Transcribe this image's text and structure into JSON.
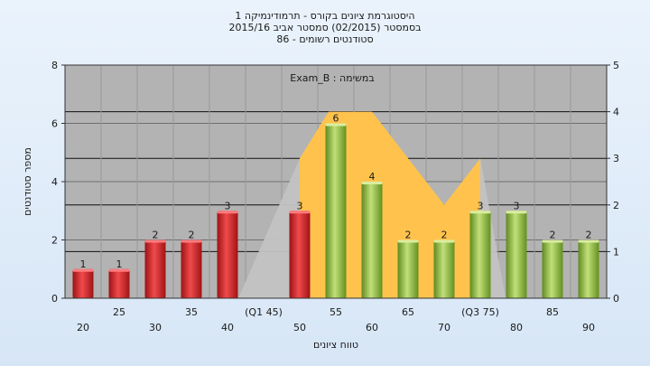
{
  "chart_data": {
    "type": "bar",
    "title_lines": [
      "היסטוגרמת ציונים בקורס - תרמודינמיקה 1",
      "בסמסטר  (02/2015)  סמסטר אביב 2015/16",
      "סטודנטים רשומים - 86"
    ],
    "annotation": "במשימה : Exam_B",
    "xlabel": "טווח ציונים",
    "ylabel": "מספר סטודנטים",
    "ylim": [
      0,
      8
    ],
    "y_ticks": [
      0,
      2,
      4,
      6,
      8
    ],
    "y2lim": [
      0,
      5
    ],
    "y2_ticks": [
      0,
      1,
      2,
      3,
      4,
      5
    ],
    "categories": [
      "20",
      "25",
      "30",
      "35",
      "40",
      "(Q1 45)",
      "50",
      "55",
      "60",
      "65",
      "70",
      "(Q3 75)",
      "80",
      "85",
      "90"
    ],
    "values": [
      1,
      1,
      2,
      2,
      3,
      0,
      3,
      6,
      4,
      2,
      2,
      3,
      3,
      2,
      2
    ],
    "bar_colors": [
      "red",
      "red",
      "red",
      "red",
      "red",
      "none",
      "red",
      "green",
      "green",
      "green",
      "green",
      "green",
      "green",
      "green",
      "green"
    ],
    "data_labels": [
      "1",
      "1",
      "2",
      "2",
      "3",
      "",
      "3",
      "6",
      "4",
      "2",
      "2",
      "3",
      "3",
      "2",
      "2"
    ],
    "grid": true,
    "colors": {
      "plot_bg": "#b3b3b3",
      "red": "#e0262a",
      "green": "#8fbe3c",
      "quartile_area": "#ffc34d",
      "outer_area": "#c3c3c3"
    }
  }
}
